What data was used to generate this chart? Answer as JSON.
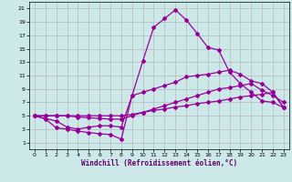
{
  "background_color": "#cce8e8",
  "grid_color": "#b0b0b0",
  "line_color": "#990099",
  "marker": "D",
  "markersize": 2,
  "linewidth": 0.9,
  "xlabel": "Windchill (Refroidissement éolien,°C)",
  "xlim": [
    -0.5,
    23.5
  ],
  "ylim": [
    0,
    22
  ],
  "xticks": [
    0,
    1,
    2,
    3,
    4,
    5,
    6,
    7,
    8,
    9,
    10,
    11,
    12,
    13,
    14,
    15,
    16,
    17,
    18,
    19,
    20,
    21,
    22,
    23
  ],
  "yticks": [
    1,
    3,
    5,
    7,
    9,
    11,
    13,
    15,
    17,
    19,
    21
  ],
  "line1_x": [
    0,
    1,
    2,
    3,
    4,
    5,
    6,
    7,
    8,
    9,
    10,
    11,
    12,
    13,
    14,
    15,
    16,
    17,
    18,
    19,
    20,
    21,
    22,
    23
  ],
  "line1_y": [
    5,
    4.5,
    3.2,
    3.0,
    2.7,
    2.5,
    2.3,
    2.2,
    1.5,
    8.0,
    13.2,
    18.2,
    19.5,
    20.8,
    19.3,
    17.3,
    15.2,
    14.8,
    11.5,
    9.8,
    8.5,
    7.2,
    7.0,
    6.2
  ],
  "line2_x": [
    0,
    2,
    3,
    4,
    5,
    6,
    7,
    8,
    9,
    10,
    11,
    12,
    13,
    14,
    15,
    16,
    17,
    18,
    19,
    20,
    21,
    22,
    23
  ],
  "line2_y": [
    5,
    4.2,
    3.3,
    3.0,
    3.3,
    3.5,
    3.5,
    3.3,
    8.0,
    8.5,
    9.0,
    9.5,
    10.0,
    10.8,
    11.0,
    11.2,
    11.5,
    11.8,
    11.2,
    10.2,
    9.8,
    8.5,
    6.2
  ],
  "line3_x": [
    0,
    1,
    2,
    3,
    4,
    5,
    6,
    7,
    8,
    9,
    10,
    11,
    12,
    13,
    14,
    15,
    16,
    17,
    18,
    19,
    20,
    21,
    22,
    23
  ],
  "line3_y": [
    5,
    5,
    5,
    5,
    4.8,
    4.7,
    4.6,
    4.5,
    4.5,
    5.0,
    5.5,
    6.0,
    6.5,
    7.0,
    7.5,
    8.0,
    8.5,
    9.0,
    9.2,
    9.5,
    9.8,
    8.8,
    8.0,
    7.0
  ],
  "line4_x": [
    0,
    1,
    2,
    3,
    4,
    5,
    6,
    7,
    8,
    9,
    10,
    11,
    12,
    13,
    14,
    15,
    16,
    17,
    18,
    19,
    20,
    21,
    22,
    23
  ],
  "line4_y": [
    5,
    5,
    5,
    5,
    5,
    5,
    5,
    5,
    5,
    5.2,
    5.5,
    5.8,
    6.0,
    6.3,
    6.5,
    6.8,
    7.0,
    7.2,
    7.5,
    7.8,
    8.0,
    8.2,
    8.5,
    6.2
  ]
}
